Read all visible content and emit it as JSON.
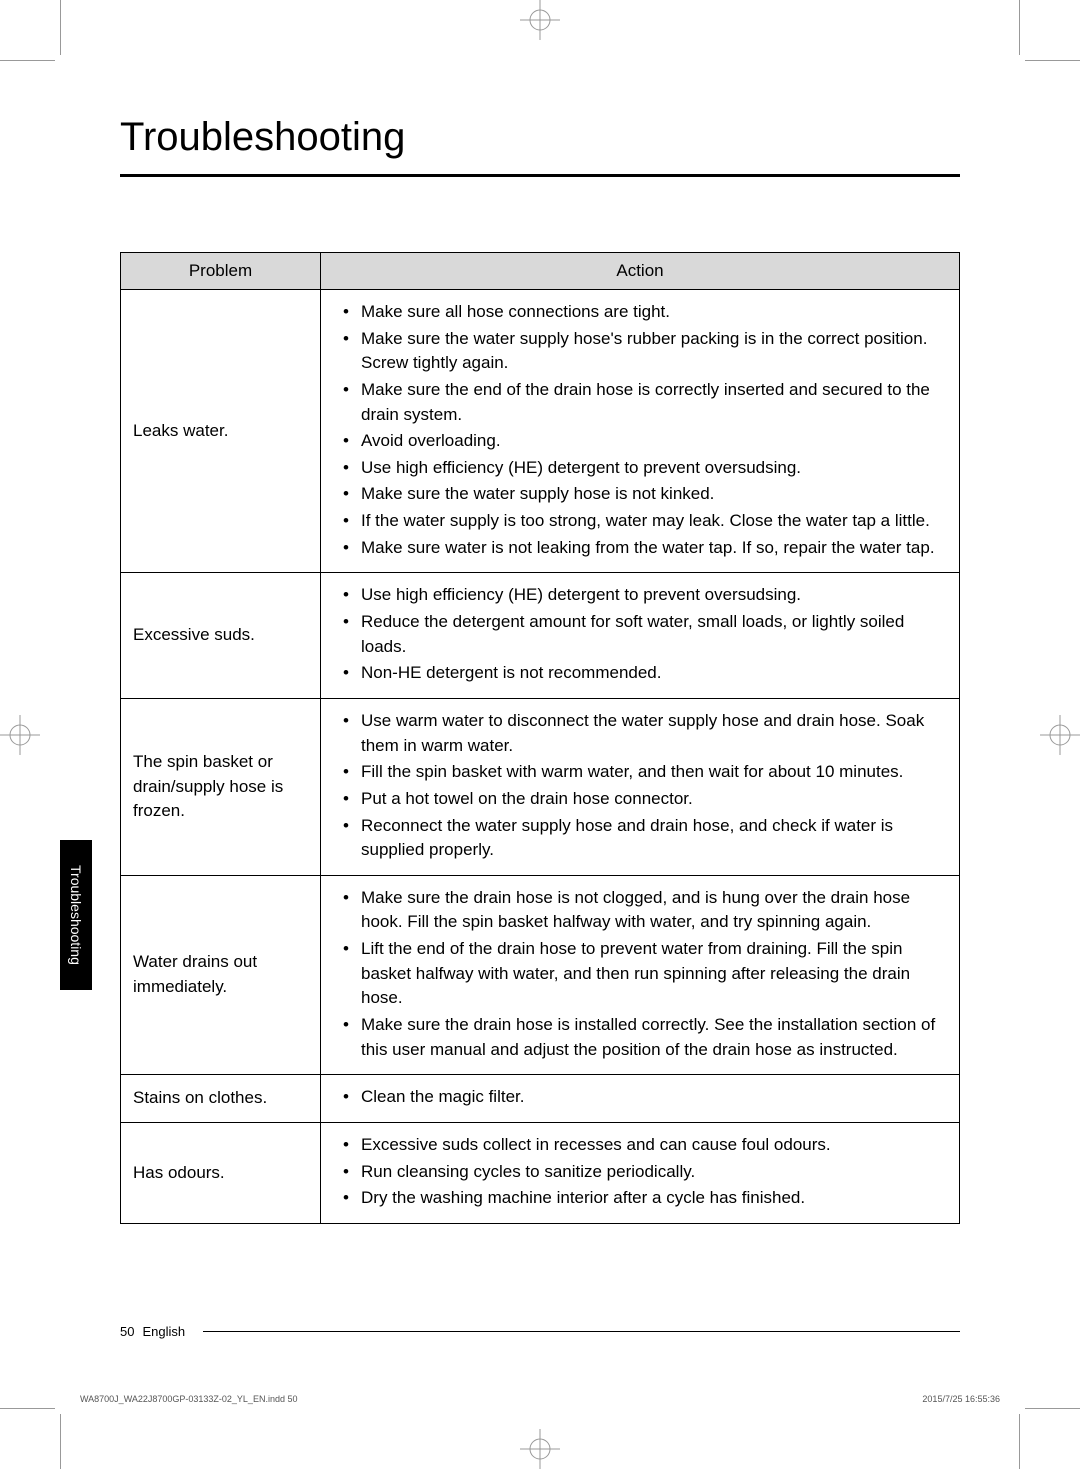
{
  "page": {
    "title": "Troubleshooting",
    "sideTab": "Troubleshooting",
    "pageNumber": "50",
    "language": "English",
    "metaLeft": "WA8700J_WA22J8700GP-03133Z-02_YL_EN.indd   50",
    "metaRight": "2015/7/25   16:55:36"
  },
  "table": {
    "headers": {
      "problem": "Problem",
      "action": "Action"
    },
    "rows": [
      {
        "problem": "Leaks water.",
        "actions": [
          "Make sure all hose connections are tight.",
          "Make sure the water supply hose's rubber packing is in the correct position. Screw tightly again.",
          "Make sure the end of the drain hose is correctly inserted and secured to the drain system.",
          "Avoid overloading.",
          "Use high efficiency (HE) detergent to prevent oversudsing.",
          "Make sure the water supply hose is not kinked.",
          "If the water supply is too strong, water may leak. Close the water tap a little.",
          "Make sure water is not leaking from the water tap. If so, repair the water tap."
        ]
      },
      {
        "problem": "Excessive suds.",
        "actions": [
          "Use high efficiency (HE) detergent to prevent oversudsing.",
          "Reduce the detergent amount for soft water, small loads, or lightly soiled loads.",
          "Non-HE detergent is not recommended."
        ]
      },
      {
        "problem": "The spin basket or drain/supply hose is frozen.",
        "actions": [
          "Use warm water to disconnect the water supply hose and drain hose. Soak them in warm water.",
          "Fill the spin basket with warm water, and then wait for about 10 minutes.",
          "Put a hot towel on the drain hose connector.",
          "Reconnect the water supply hose and drain hose, and check if water is supplied properly."
        ]
      },
      {
        "problem": "Water drains out immediately.",
        "actions": [
          "Make sure the drain hose is not clogged, and is hung over the drain hose hook. Fill the spin basket halfway with water, and try spinning again.",
          "Lift the end of the drain hose to prevent water from draining. Fill the spin basket halfway with water, and then run spinning after releasing the drain hose.",
          "Make sure the drain hose is installed correctly. See the installation section of this user manual and adjust the position of the drain hose as instructed."
        ]
      },
      {
        "problem": "Stains on clothes.",
        "actions": [
          "Clean the magic filter."
        ]
      },
      {
        "problem": "Has odours.",
        "actions": [
          "Excessive suds collect in recesses and can cause foul odours.",
          "Run cleansing cycles to sanitize periodically.",
          "Dry the washing machine interior after a cycle has finished."
        ]
      }
    ]
  }
}
